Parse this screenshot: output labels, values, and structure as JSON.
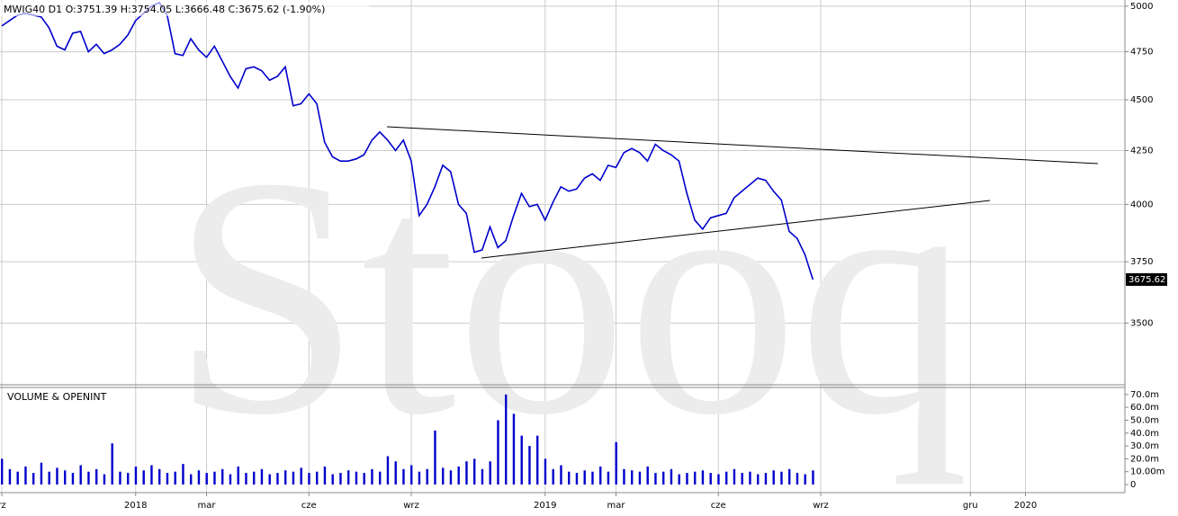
{
  "chart_data": {
    "type": "line",
    "title": "MWIG40  D1  O:3751.39  H:3754.05  L:3666.48  C:3675.62  (-1.90%)",
    "watermark": "Stooq",
    "categories": [
      "rz",
      null,
      null,
      null,
      null,
      null,
      null,
      null,
      null,
      null,
      null,
      null,
      null,
      null,
      null,
      null,
      null,
      "2018",
      null,
      null,
      null,
      null,
      null,
      null,
      null,
      null,
      "mar",
      null,
      null,
      null,
      null,
      null,
      null,
      null,
      null,
      null,
      null,
      null,
      null,
      "cze",
      null,
      null,
      null,
      null,
      null,
      null,
      null,
      null,
      null,
      null,
      null,
      null,
      "wrz",
      null,
      null,
      null,
      null,
      null,
      null,
      null,
      null,
      null,
      null,
      null,
      null,
      null,
      null,
      null,
      null,
      "2019",
      null,
      null,
      null,
      null,
      null,
      null,
      null,
      null,
      "mar",
      null,
      null,
      null,
      null,
      null,
      null,
      null,
      null,
      null,
      null,
      null,
      null,
      "cze",
      null,
      null,
      null,
      null,
      null,
      null,
      null,
      null,
      null,
      null,
      null,
      null,
      "wrz",
      null,
      null,
      null,
      null,
      null,
      null,
      null,
      null,
      null,
      null,
      null,
      null,
      null,
      null,
      null,
      null,
      null,
      null,
      "gru",
      null,
      null,
      null,
      null,
      null,
      null,
      "2020",
      null,
      null,
      null,
      null,
      null,
      null,
      null,
      null,
      null,
      null,
      null,
      null
    ],
    "values": [
      4890,
      4920,
      4950,
      4960,
      4950,
      4940,
      4880,
      4780,
      4760,
      4850,
      4860,
      4750,
      4790,
      4740,
      4760,
      4790,
      4840,
      4920,
      4960,
      5000,
      5020,
      4950,
      4740,
      4730,
      4820,
      4760,
      4720,
      4780,
      4700,
      4620,
      4560,
      4660,
      4670,
      4650,
      4600,
      4620,
      4670,
      4470,
      4480,
      4530,
      4480,
      4290,
      4220,
      4200,
      4200,
      4210,
      4230,
      4300,
      4340,
      4300,
      4250,
      4300,
      4200,
      3950,
      4000,
      4080,
      4180,
      4150,
      4000,
      3960,
      3790,
      3800,
      3900,
      3810,
      3840,
      3950,
      4050,
      3990,
      4000,
      3930,
      4010,
      4080,
      4060,
      4070,
      4120,
      4140,
      4110,
      4180,
      4170,
      4240,
      4260,
      4240,
      4200,
      4280,
      4250,
      4230,
      4200,
      4050,
      3930,
      3890,
      3940,
      3950,
      3960,
      4030,
      4060,
      4090,
      4120,
      4110,
      4060,
      4020,
      3880,
      3850,
      3780,
      3675.62,
      null,
      null,
      null,
      null,
      null,
      null,
      null,
      null,
      null,
      null,
      null,
      null,
      null,
      null,
      null,
      null,
      null,
      null,
      null,
      null,
      null,
      null,
      null,
      null,
      null,
      null,
      null,
      null,
      null,
      null,
      null,
      null,
      null,
      null,
      null,
      null,
      null,
      null,
      null
    ],
    "color": "#0000cc",
    "log_scale": true,
    "grid": true,
    "ylim": [
      3265,
      5035
    ],
    "yticks": [
      3500,
      3750,
      4000,
      4250,
      4500,
      4750,
      5000
    ],
    "volume": {
      "type": "bar",
      "title": "VOLUME & OPENINT",
      "color": "#0000cc",
      "ylim": [
        -6.3,
        74.8
      ],
      "yticks": [
        0,
        {
          "value": 10,
          "label": "10.00m"
        },
        {
          "value": 20,
          "label": "20.0m"
        },
        {
          "value": 30,
          "label": "30.0m"
        },
        {
          "value": 40,
          "label": "40.0m"
        },
        {
          "value": 50,
          "label": "50.0m"
        },
        {
          "value": 60,
          "label": "60.0m"
        },
        {
          "value": 70,
          "label": "70.0m"
        }
      ],
      "values": [
        20,
        12,
        10,
        14,
        9,
        17,
        10,
        13,
        11,
        9,
        15,
        10,
        12,
        8,
        32,
        10,
        9,
        14,
        11,
        15,
        12,
        9,
        10,
        16,
        8,
        11,
        9,
        10,
        12,
        8,
        14,
        9,
        10,
        12,
        8,
        9,
        11,
        10,
        13,
        9,
        10,
        14,
        8,
        9,
        11,
        10,
        9,
        12,
        10,
        22,
        18,
        12,
        15,
        10,
        12,
        42,
        13,
        11,
        14,
        18,
        20,
        12,
        18,
        50,
        70,
        55,
        38,
        30,
        38,
        20,
        12,
        15,
        10,
        9,
        11,
        10,
        14,
        10,
        33,
        12,
        11,
        10,
        14,
        9,
        10,
        12,
        8,
        9,
        10,
        11,
        9,
        8,
        10,
        12,
        9,
        10,
        8,
        9,
        11,
        10,
        12,
        9,
        8,
        11,
        null,
        null,
        null,
        null,
        null,
        null,
        null,
        null,
        null,
        null,
        null,
        null,
        null,
        null,
        null,
        null,
        null,
        null,
        null,
        null,
        null,
        null,
        null,
        null,
        null,
        null,
        null,
        null,
        null,
        null,
        null,
        null,
        null,
        null,
        null,
        null,
        null,
        null,
        null
      ]
    }
  }
}
